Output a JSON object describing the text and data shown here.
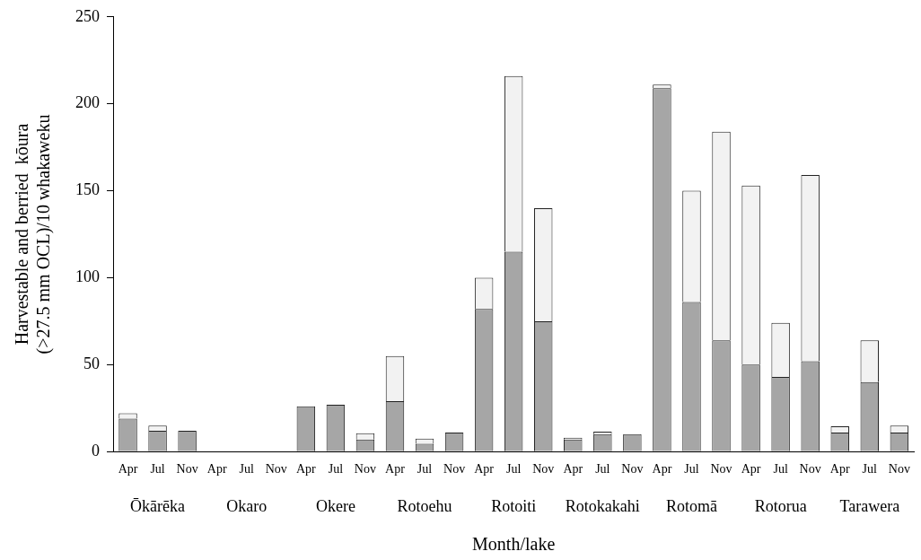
{
  "chart_data": {
    "type": "bar",
    "stacked": true,
    "xlabel": "Month/lake",
    "ylabel": "Harvestable and berried  kōura\n(>27.5 mm OCL)/10 whakaweku",
    "categories": [
      "Apr",
      "Jul",
      "Nov",
      "Apr",
      "Jul",
      "Nov",
      "Apr",
      "Jul",
      "Nov",
      "Apr",
      "Jul",
      "Nov",
      "Apr",
      "Jul",
      "Nov",
      "Apr",
      "Jul",
      "Nov",
      "Apr",
      "Jul",
      "Nov",
      "Apr",
      "Jul",
      "Nov",
      "Apr",
      "Jul",
      "Nov"
    ],
    "series": [
      {
        "color": "#a6a6a6",
        "values": [
          19,
          12,
          12,
          0,
          0,
          0,
          26,
          27,
          7,
          29,
          4.5,
          11,
          82,
          115,
          75,
          7,
          10,
          10,
          209,
          86,
          64,
          50,
          43,
          52,
          11,
          40,
          11
        ]
      },
      {
        "color": "#f2f2f2",
        "values": [
          3,
          3,
          0,
          0,
          0,
          0,
          0,
          0,
          3.5,
          26,
          3,
          null,
          18,
          101,
          65,
          1,
          1.5,
          null,
          2,
          64,
          120,
          103,
          31,
          107,
          3.5,
          24,
          4
        ]
      }
    ],
    "annotations": [
      "Ōkārēka",
      "Okaro",
      "Okere",
      "Rotoehu",
      "Rotoiti",
      "Rotokakahi",
      "Rotomā",
      "Rotorua",
      "Tarawera"
    ],
    "ylim": [
      0,
      250
    ],
    "yticks": [
      0,
      50,
      100,
      150,
      200,
      250
    ],
    "grid": false,
    "legend": false
  }
}
